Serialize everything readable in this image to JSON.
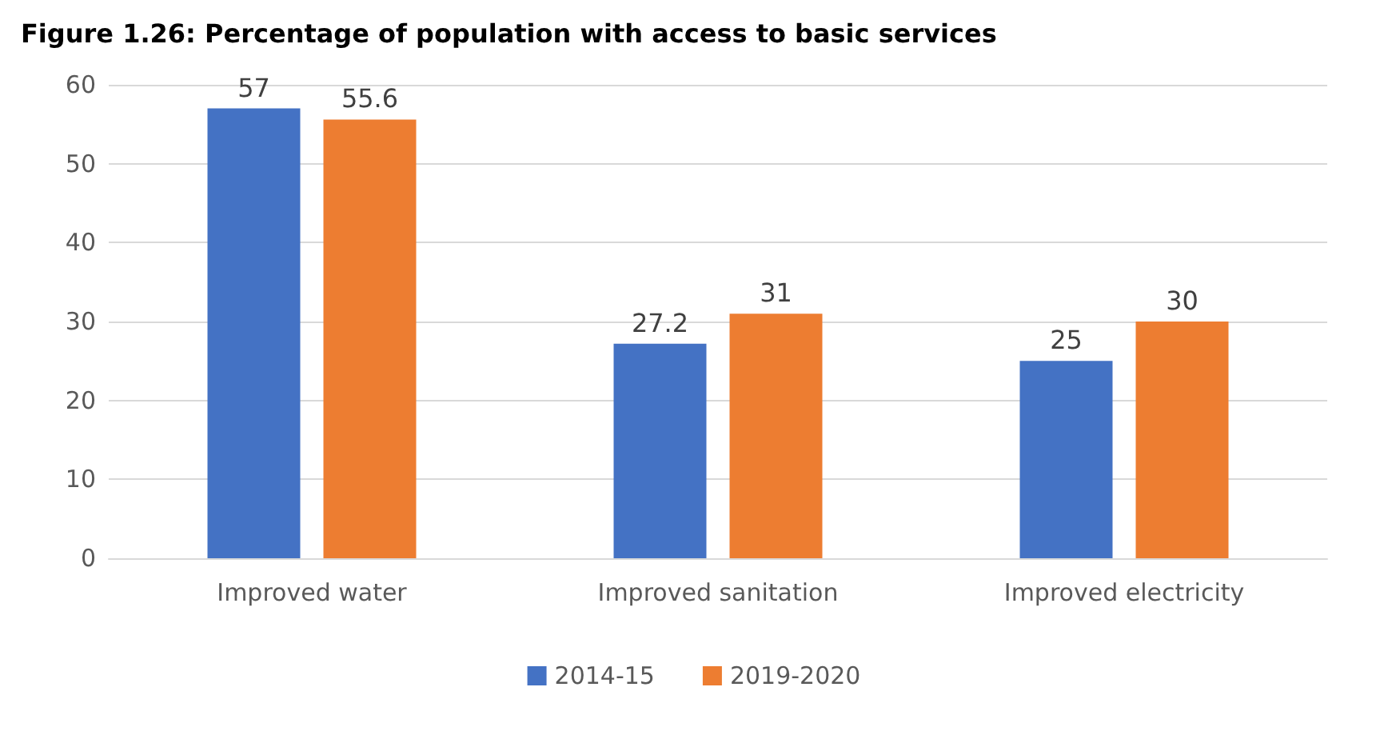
{
  "chart_data": {
    "type": "bar",
    "title": "Figure 1.26: Percentage of population with access to basic services",
    "categories": [
      "Improved water",
      "Improved sanitation",
      "Improved electricity"
    ],
    "series": [
      {
        "name": "2014-15",
        "color": "#4472c4",
        "values": [
          57,
          27.2,
          25
        ]
      },
      {
        "name": "2019-2020",
        "color": "#ed7d31",
        "values": [
          55.6,
          31,
          30
        ]
      }
    ],
    "ylim": [
      0,
      60
    ],
    "yticks": [
      0,
      10,
      20,
      30,
      40,
      50,
      60
    ],
    "grid": "y",
    "legend": "bottom",
    "data_labels": true
  }
}
